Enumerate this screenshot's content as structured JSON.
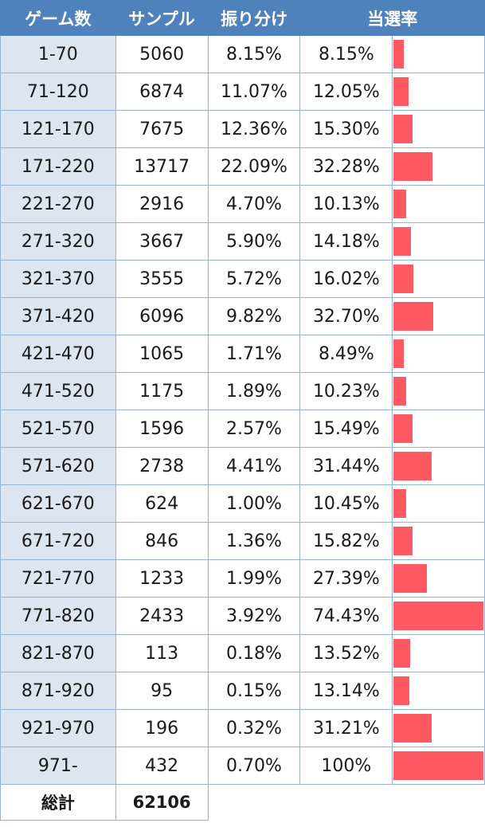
{
  "header": {
    "games": "ゲーム数",
    "samples": "サンプル",
    "share": "振り分け",
    "rate": "当選率"
  },
  "rows": [
    {
      "range": "1-70",
      "samples": "5060",
      "share": "8.15%",
      "rate": "8.15%",
      "rate_value": 8.15
    },
    {
      "range": "71-120",
      "samples": "6874",
      "share": "11.07%",
      "rate": "12.05%",
      "rate_value": 12.05
    },
    {
      "range": "121-170",
      "samples": "7675",
      "share": "12.36%",
      "rate": "15.30%",
      "rate_value": 15.3
    },
    {
      "range": "171-220",
      "samples": "13717",
      "share": "22.09%",
      "rate": "32.28%",
      "rate_value": 32.28
    },
    {
      "range": "221-270",
      "samples": "2916",
      "share": "4.70%",
      "rate": "10.13%",
      "rate_value": 10.13
    },
    {
      "range": "271-320",
      "samples": "3667",
      "share": "5.90%",
      "rate": "14.18%",
      "rate_value": 14.18
    },
    {
      "range": "321-370",
      "samples": "3555",
      "share": "5.72%",
      "rate": "16.02%",
      "rate_value": 16.02
    },
    {
      "range": "371-420",
      "samples": "6096",
      "share": "9.82%",
      "rate": "32.70%",
      "rate_value": 32.7
    },
    {
      "range": "421-470",
      "samples": "1065",
      "share": "1.71%",
      "rate": "8.49%",
      "rate_value": 8.49
    },
    {
      "range": "471-520",
      "samples": "1175",
      "share": "1.89%",
      "rate": "10.23%",
      "rate_value": 10.23
    },
    {
      "range": "521-570",
      "samples": "1596",
      "share": "2.57%",
      "rate": "15.49%",
      "rate_value": 15.49
    },
    {
      "range": "571-620",
      "samples": "2738",
      "share": "4.41%",
      "rate": "31.44%",
      "rate_value": 31.44
    },
    {
      "range": "621-670",
      "samples": "624",
      "share": "1.00%",
      "rate": "10.45%",
      "rate_value": 10.45
    },
    {
      "range": "671-720",
      "samples": "846",
      "share": "1.36%",
      "rate": "15.82%",
      "rate_value": 15.82
    },
    {
      "range": "721-770",
      "samples": "1233",
      "share": "1.99%",
      "rate": "27.39%",
      "rate_value": 27.39
    },
    {
      "range": "771-820",
      "samples": "2433",
      "share": "3.92%",
      "rate": "74.43%",
      "rate_value": 74.43
    },
    {
      "range": "821-870",
      "samples": "113",
      "share": "0.18%",
      "rate": "13.52%",
      "rate_value": 13.52
    },
    {
      "range": "871-920",
      "samples": "95",
      "share": "0.15%",
      "rate": "13.14%",
      "rate_value": 13.14
    },
    {
      "range": "921-970",
      "samples": "196",
      "share": "0.32%",
      "rate": "31.21%",
      "rate_value": 31.21
    },
    {
      "range": "971-",
      "samples": "432",
      "share": "0.70%",
      "rate": "100%",
      "rate_value": 100
    }
  ],
  "total": {
    "label": "総計",
    "value": "62106"
  },
  "colors": {
    "header_bg": "#4f81bd",
    "range_bg": "#dce6f1",
    "border": "#95b3d7",
    "bar": "#ff5a64"
  },
  "bar_scale_max_percent": 74.43
}
